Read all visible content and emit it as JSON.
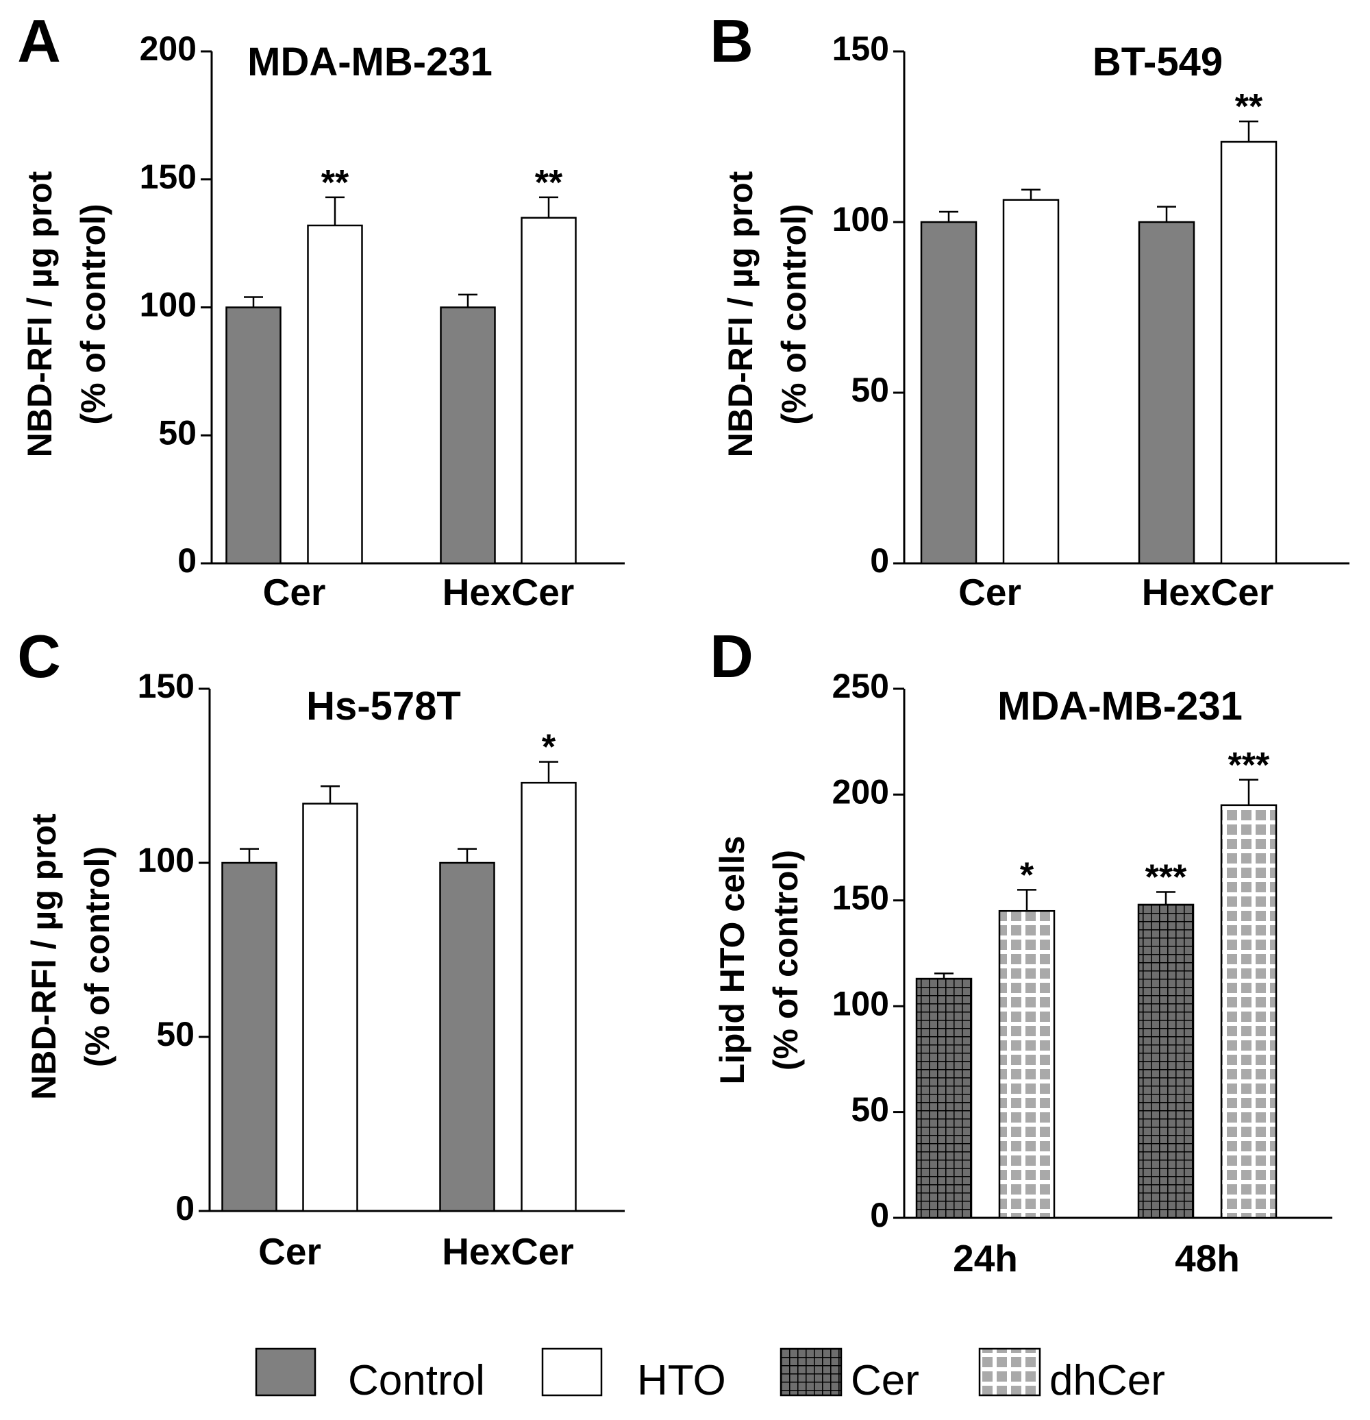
{
  "colors": {
    "control": "#808080",
    "hto": "#ffffff",
    "cer_pattern_bg": "#6e6e6e",
    "cer_pattern_line": "#000000",
    "dhcer_pattern_bg": "#a9a9a9",
    "dhcer_pattern_line": "#ffffff"
  },
  "legend": {
    "items": [
      {
        "label": "Control",
        "fill": "control"
      },
      {
        "label": "HTO",
        "fill": "hto"
      },
      {
        "label": "Cer",
        "fill": "cer"
      },
      {
        "label": "dhCer",
        "fill": "dhcer"
      }
    ]
  },
  "chart_data": [
    {
      "panel": "A",
      "type": "bar",
      "title": "MDA-MB-231",
      "ylabel_line1": "NBD-RFI / µg prot",
      "ylabel_line2": "(% of control)",
      "ylim": [
        0,
        200
      ],
      "yticks": [
        0,
        50,
        100,
        150,
        200
      ],
      "categories": [
        "Cer",
        "HexCer"
      ],
      "series": [
        {
          "fill": "control",
          "values": [
            100,
            100
          ],
          "errors": [
            4,
            5
          ],
          "sig": [
            "",
            ""
          ]
        },
        {
          "fill": "hto",
          "values": [
            132,
            135
          ],
          "errors": [
            11,
            8
          ],
          "sig": [
            "**",
            "**"
          ]
        }
      ]
    },
    {
      "panel": "B",
      "type": "bar",
      "title": "BT-549",
      "ylabel_line1": "NBD-RFI / µg prot",
      "ylabel_line2": "(% of control)",
      "ylim": [
        0,
        150
      ],
      "yticks": [
        0,
        50,
        100,
        150
      ],
      "categories": [
        "Cer",
        "HexCer"
      ],
      "series": [
        {
          "fill": "control",
          "values": [
            100,
            100
          ],
          "errors": [
            3,
            4.5
          ],
          "sig": [
            "",
            ""
          ]
        },
        {
          "fill": "hto",
          "values": [
            106.5,
            123.5
          ],
          "errors": [
            3,
            6
          ],
          "sig": [
            "",
            "**"
          ]
        }
      ]
    },
    {
      "panel": "C",
      "type": "bar",
      "title": "Hs-578T",
      "ylabel_line1": "NBD-RFI / µg prot",
      "ylabel_line2": "(% of control)",
      "ylim": [
        0,
        150
      ],
      "yticks": [
        0,
        50,
        100,
        150
      ],
      "categories": [
        "Cer",
        "HexCer"
      ],
      "series": [
        {
          "fill": "control",
          "values": [
            100,
            100
          ],
          "errors": [
            4,
            4
          ],
          "sig": [
            "",
            ""
          ]
        },
        {
          "fill": "hto",
          "values": [
            117,
            123
          ],
          "errors": [
            5,
            6
          ],
          "sig": [
            "",
            "*"
          ]
        }
      ]
    },
    {
      "panel": "D",
      "type": "bar",
      "title": "MDA-MB-231",
      "ylabel_line1": "Lipid  HTO cells",
      "ylabel_line2": "(% of control)",
      "ylim": [
        0,
        250
      ],
      "yticks": [
        0,
        50,
        100,
        150,
        200,
        250
      ],
      "categories": [
        "24h",
        "48h"
      ],
      "series": [
        {
          "fill": "cer",
          "values": [
            113,
            148
          ],
          "errors": [
            2.5,
            6
          ],
          "sig": [
            "",
            "***"
          ]
        },
        {
          "fill": "dhcer",
          "values": [
            145,
            195
          ],
          "errors": [
            10,
            12
          ],
          "sig": [
            "*",
            "***"
          ]
        }
      ]
    }
  ]
}
